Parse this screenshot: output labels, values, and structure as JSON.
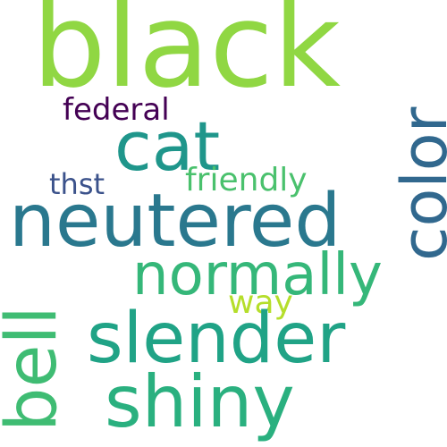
{
  "words": [
    {
      "text": "black",
      "color": "#90d743",
      "vertical": false
    },
    {
      "text": "cat",
      "color": "#1f968b",
      "vertical": false
    },
    {
      "text": "color",
      "color": "#31688e",
      "vertical": true
    },
    {
      "text": "federal",
      "color": "#440154",
      "vertical": false
    },
    {
      "text": "neutered",
      "color": "#2a788e",
      "vertical": false
    },
    {
      "text": "thst",
      "color": "#3b528b",
      "vertical": false
    },
    {
      "text": "friendly",
      "color": "#4ac16d",
      "vertical": false
    },
    {
      "text": "normally",
      "color": "#35b779",
      "vertical": false
    },
    {
      "text": "way",
      "color": "#b5de2b",
      "vertical": false
    },
    {
      "text": "slender",
      "color": "#20a386",
      "vertical": false
    },
    {
      "text": "bell",
      "color": "#3fbc73",
      "vertical": true
    },
    {
      "text": "shiny",
      "color": "#2ab07f",
      "vertical": false
    }
  ]
}
